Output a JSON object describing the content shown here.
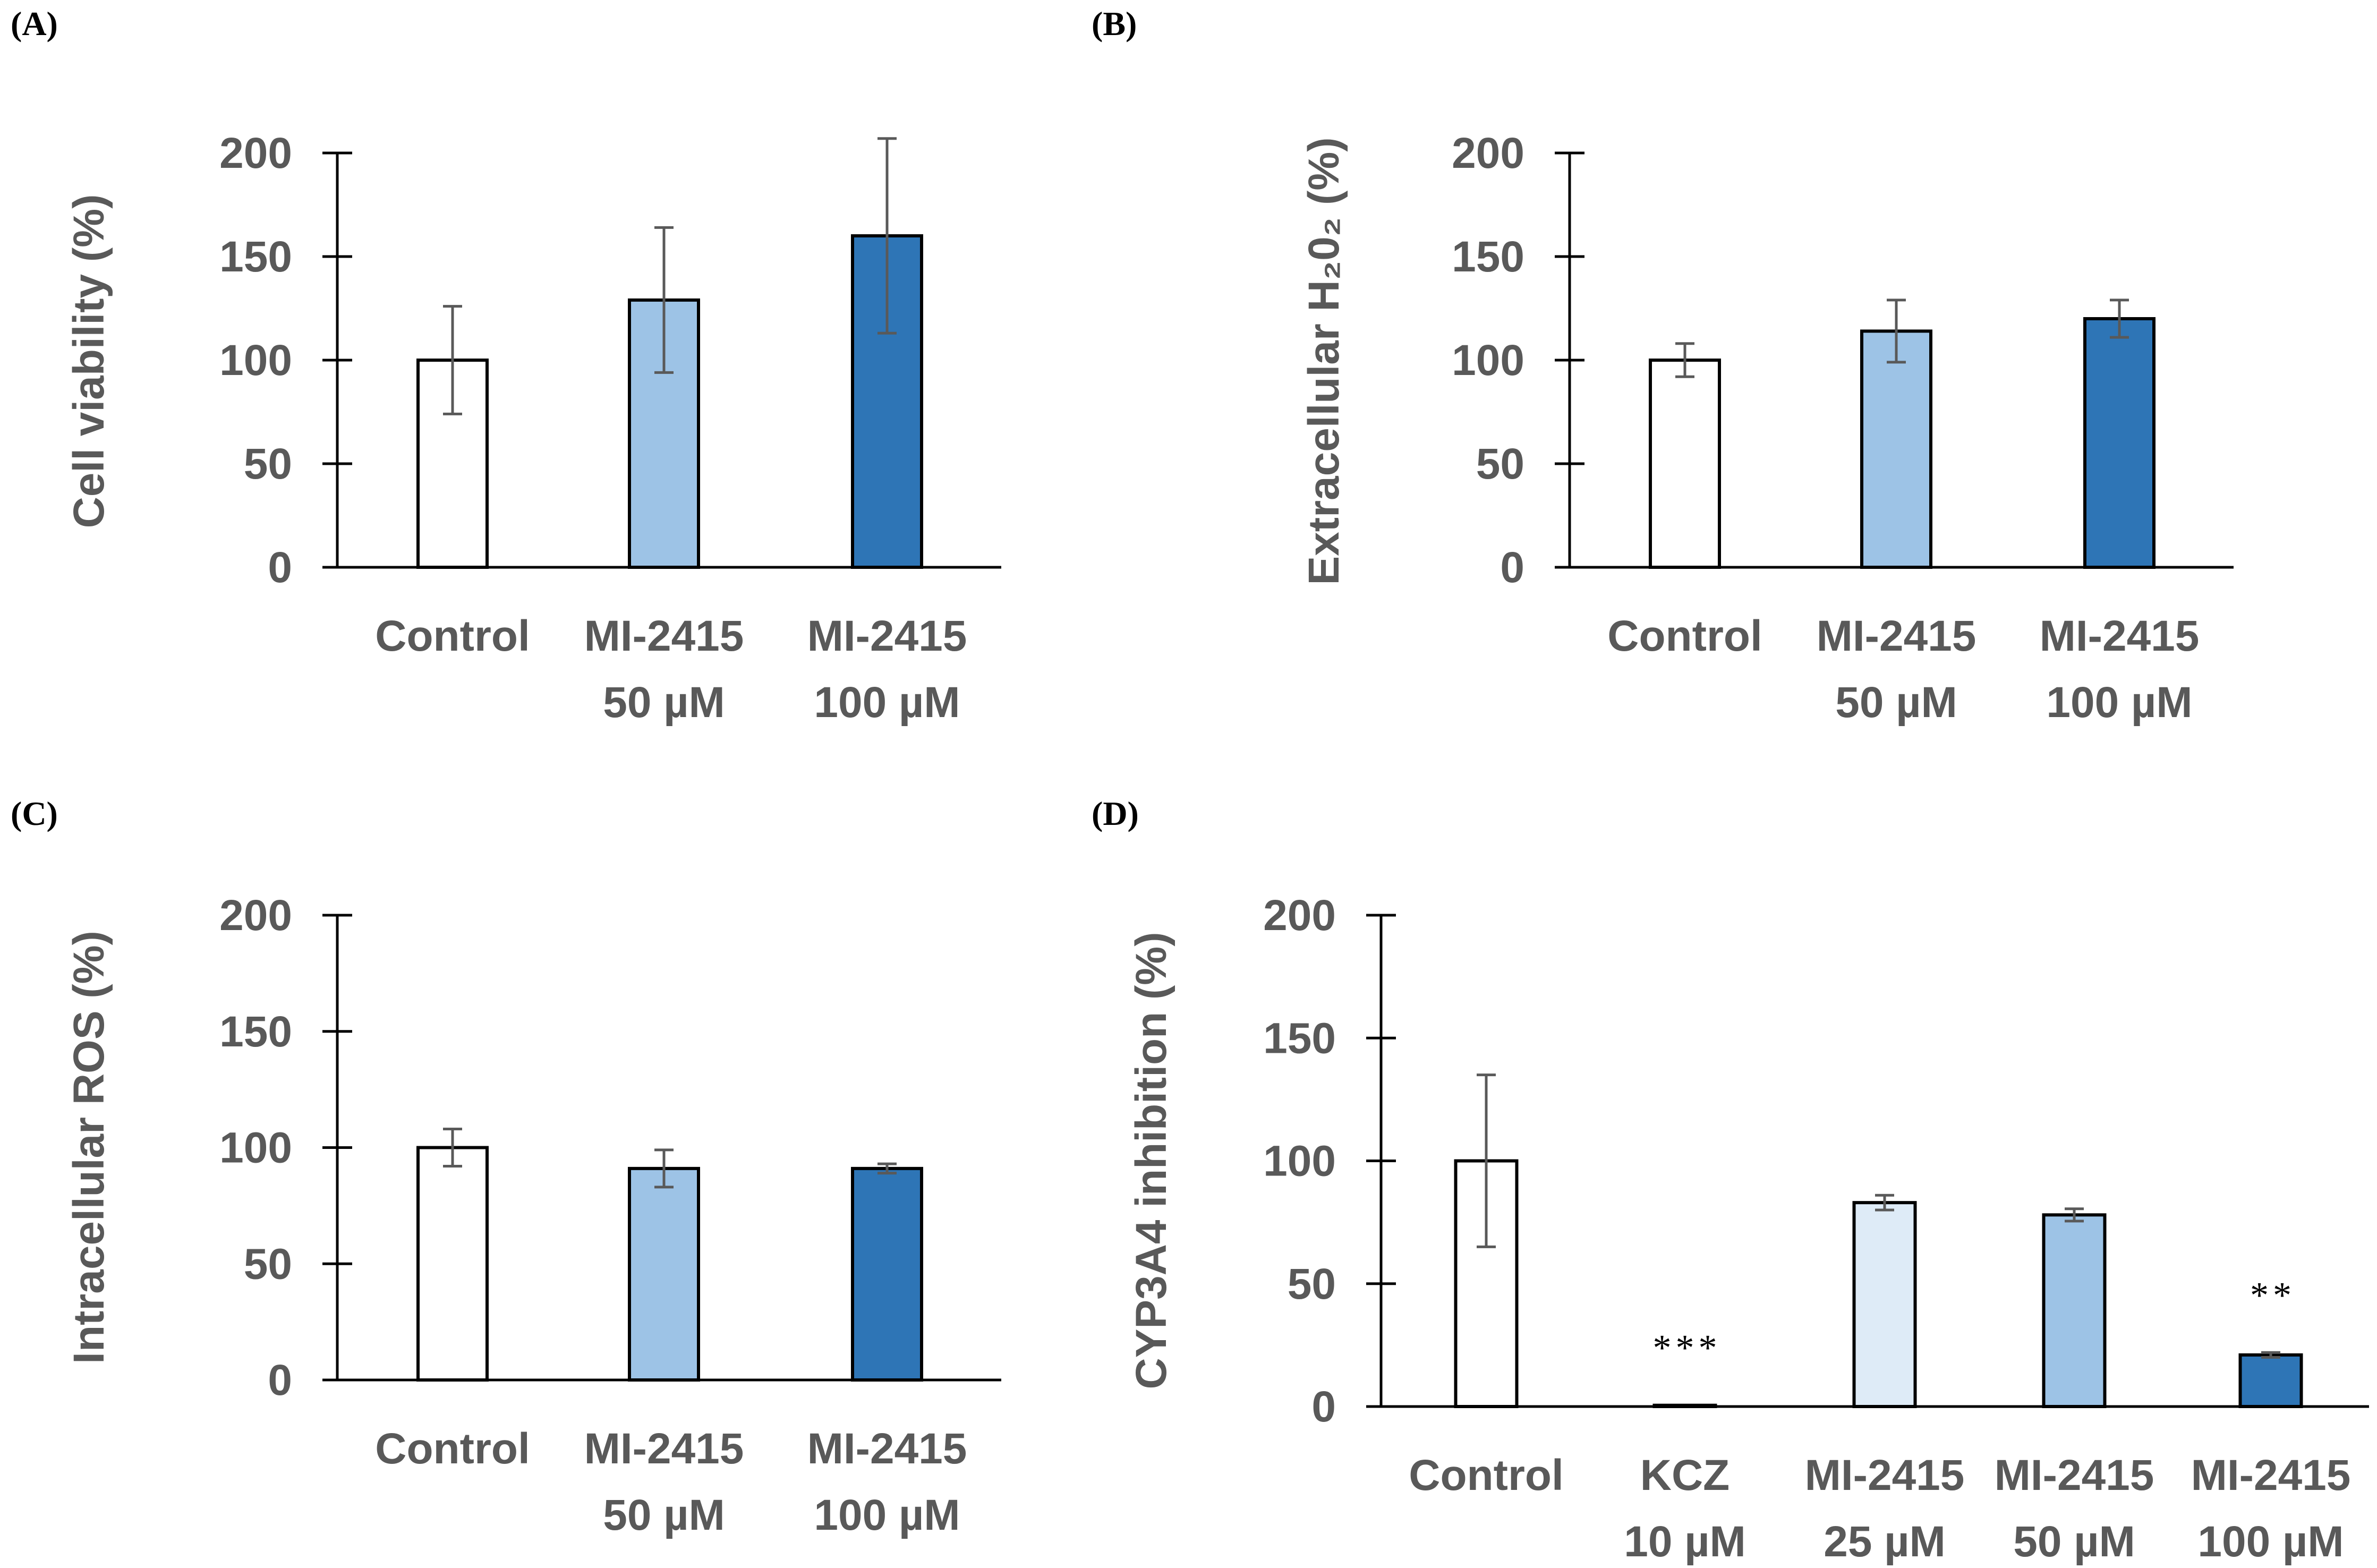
{
  "panel_labels": [
    "(A)",
    "(B)",
    "(C)",
    "(D)"
  ],
  "colors": {
    "bar_outline": "#000000",
    "axis": "#000000",
    "error_bar": "#595959",
    "text": "#595959"
  },
  "chart_data": [
    {
      "type": "bar",
      "panel": "(A)",
      "ylabel": "Cell viability (%)",
      "ylim": [
        0,
        200
      ],
      "yticks": [
        "0",
        "50",
        "100",
        "150",
        "200"
      ],
      "categories": [
        [
          "Control"
        ],
        [
          "MI-2415",
          "50 µM"
        ],
        [
          "MI-2415",
          "100 µM"
        ]
      ],
      "values": [
        100,
        129,
        160
      ],
      "errors": [
        26,
        35,
        47
      ],
      "bar_colors": [
        "#ffffff",
        "#9dc3e6",
        "#2e75b6"
      ],
      "significance": [
        "",
        "",
        ""
      ]
    },
    {
      "type": "bar",
      "panel": "(B)",
      "ylabel": "Extracellular H₂0₂ (%)",
      "ylim": [
        0,
        200
      ],
      "yticks": [
        "0",
        "50",
        "100",
        "150",
        "200"
      ],
      "categories": [
        [
          "Control"
        ],
        [
          "MI-2415",
          "50 µM"
        ],
        [
          "MI-2415",
          "100 µM"
        ]
      ],
      "values": [
        100,
        114,
        120
      ],
      "errors": [
        8,
        15,
        9
      ],
      "bar_colors": [
        "#ffffff",
        "#9dc3e6",
        "#2e75b6"
      ],
      "significance": [
        "",
        "",
        ""
      ]
    },
    {
      "type": "bar",
      "panel": "(C)",
      "ylabel": "Intracellular ROS (%)",
      "ylim": [
        0,
        200
      ],
      "yticks": [
        "0",
        "50",
        "100",
        "150",
        "200"
      ],
      "categories": [
        [
          "Control"
        ],
        [
          "MI-2415",
          "50 µM"
        ],
        [
          "MI-2415",
          "100 µM"
        ]
      ],
      "values": [
        100,
        91,
        91
      ],
      "errors": [
        8,
        8,
        2
      ],
      "bar_colors": [
        "#ffffff",
        "#9dc3e6",
        "#2e75b6"
      ],
      "significance": [
        "",
        "",
        ""
      ]
    },
    {
      "type": "bar",
      "panel": "(D)",
      "ylabel": "CYP3A4 inhibition (%)",
      "ylim": [
        0,
        200
      ],
      "yticks": [
        "0",
        "50",
        "100",
        "150",
        "200"
      ],
      "categories": [
        [
          "Control"
        ],
        [
          "KCZ",
          "10 µM"
        ],
        [
          "MI-2415",
          "25 µM"
        ],
        [
          "MI-2415",
          "50 µM"
        ],
        [
          "MI-2415",
          "100 µM"
        ]
      ],
      "values": [
        100,
        0.5,
        83,
        78,
        21
      ],
      "errors": [
        35,
        0,
        3,
        2.5,
        1
      ],
      "bar_colors": [
        "#ffffff",
        "#ffffff",
        "#deebf7",
        "#9dc3e6",
        "#2e75b6"
      ],
      "significance": [
        "",
        "***",
        "",
        "",
        "**"
      ]
    }
  ]
}
